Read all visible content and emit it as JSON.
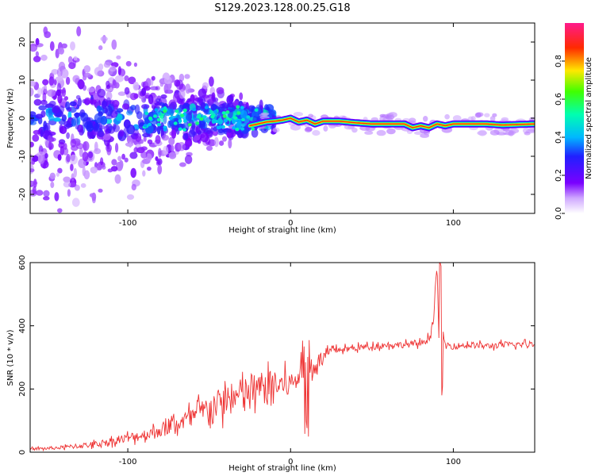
{
  "title": "S129.2023.128.00.25.G18",
  "chart_data": [
    {
      "type": "heatmap",
      "xlabel": "Height of straight line (km)",
      "ylabel": "Frequency (Hz)",
      "xlim": [
        -160,
        150
      ],
      "ylim": [
        -25,
        25
      ],
      "xticks": [
        "-100",
        "0",
        "100"
      ],
      "xtick_values": [
        -100,
        0,
        100
      ],
      "yticks": [
        "-20",
        "-10",
        "0",
        "10",
        "20"
      ],
      "ytick_values": [
        -20,
        -10,
        0,
        10,
        20
      ],
      "colormap": "rainbow (white-purple-blue-cyan-green-yellow-red-magenta)",
      "ridge": {
        "x": [
          -25,
          -15,
          -10,
          -5,
          0,
          5,
          10,
          15,
          20,
          30,
          40,
          50,
          60,
          70,
          75,
          80,
          85,
          90,
          95,
          100,
          110,
          120,
          130,
          150
        ],
        "freq": [
          -2.0,
          -1.0,
          -0.8,
          -0.5,
          0.0,
          -1.0,
          -0.5,
          -1.5,
          -0.8,
          -0.8,
          -1.2,
          -1.5,
          -1.5,
          -1.5,
          -2.5,
          -2.0,
          -2.5,
          -1.5,
          -2.0,
          -1.5,
          -1.5,
          -1.5,
          -1.8,
          -1.5
        ]
      },
      "colorbar": {
        "label": "Normalized spectral amplitude",
        "ticks": [
          "0.0",
          "0.2",
          "0.4",
          "0.6",
          "0.8"
        ],
        "tick_values": [
          0.0,
          0.2,
          0.4,
          0.6,
          0.8
        ],
        "range": [
          0,
          1
        ]
      }
    },
    {
      "type": "line",
      "xlabel": "Height of straight line (km)",
      "ylabel": "SNR (10 * v/v)",
      "xlim": [
        -160,
        150
      ],
      "ylim": [
        0,
        600
      ],
      "xticks": [
        "-100",
        "0",
        "100"
      ],
      "xtick_values": [
        -100,
        0,
        100
      ],
      "yticks": [
        "0",
        "200",
        "400",
        "600"
      ],
      "ytick_values": [
        0,
        200,
        400,
        600
      ],
      "line_color": "#ee3333",
      "series": [
        {
          "x": [
            -160,
            -150,
            -140,
            -130,
            -120,
            -110,
            -100,
            -90,
            -80,
            -70,
            -60,
            -50,
            -40,
            -30,
            -20,
            -10,
            0,
            5,
            8,
            10,
            12,
            15,
            20,
            25,
            30,
            40,
            50,
            60,
            70,
            80,
            85,
            88,
            90,
            92,
            93,
            95,
            100,
            110,
            120,
            130,
            140,
            150
          ],
          "values": [
            10,
            12,
            15,
            20,
            25,
            35,
            45,
            55,
            70,
            90,
            110,
            140,
            160,
            180,
            200,
            210,
            215,
            240,
            300,
            360,
            260,
            280,
            300,
            320,
            325,
            330,
            335,
            340,
            340,
            345,
            360,
            420,
            600,
            180,
            390,
            340,
            335,
            340,
            335,
            340,
            340,
            345
          ],
          "noise": [
            4,
            5,
            6,
            8,
            10,
            12,
            15,
            18,
            22,
            28,
            35,
            45,
            50,
            55,
            55,
            50,
            40,
            35,
            60,
            80,
            70,
            30,
            20,
            12,
            10,
            10,
            10,
            10,
            10,
            10,
            12,
            15,
            10,
            10,
            12,
            10,
            10,
            10,
            10,
            10,
            10,
            10
          ]
        }
      ]
    }
  ]
}
